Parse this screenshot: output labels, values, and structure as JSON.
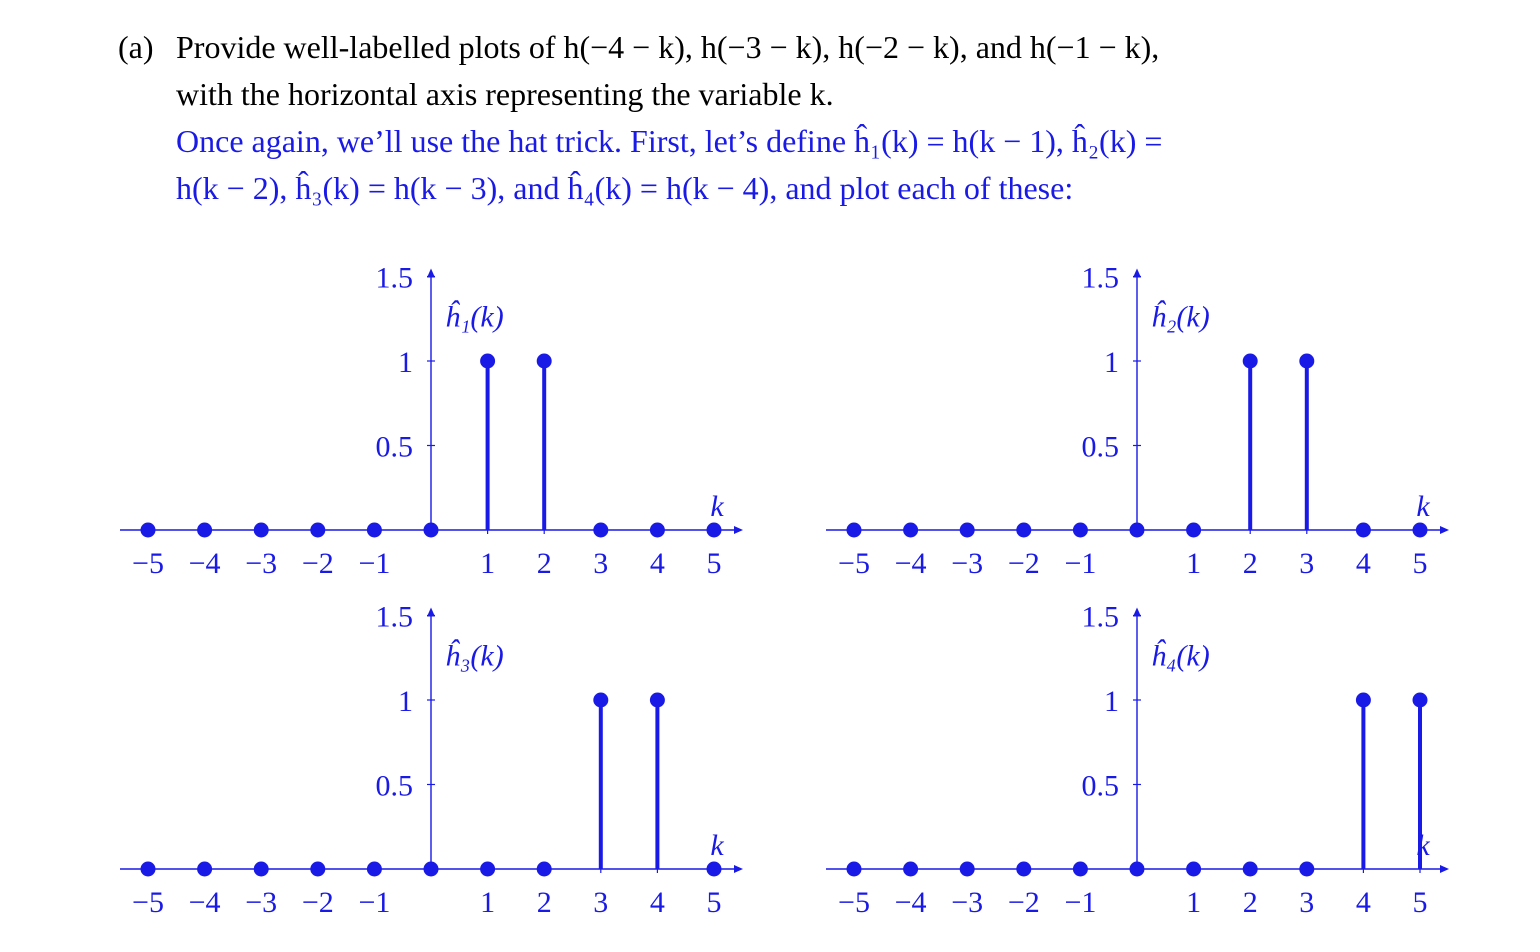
{
  "problem": {
    "label": "(a)",
    "question_lines": [
      "Provide well-labelled plots of h(−4 − k), h(−3 − k), h(−2 − k), and h(−1 − k),",
      "with the horizontal axis representing the variable k."
    ],
    "answer_lines": [
      "Once again, we’ll use the hat trick. First, let’s define ĥ₁(k) = h(k − 1), ĥ₂(k) =",
      "h(k − 2), ĥ₃(k) = h(k − 3), and ĥ₄(k) = h(k − 4), and plot each of these:"
    ]
  },
  "colors": {
    "plot": "#1a1ae6",
    "text": "#000000"
  },
  "chart_data": [
    {
      "type": "stem",
      "ylabel": "ĥ₁(k)",
      "xlabel": "k",
      "xlim": [
        -5,
        5
      ],
      "ylim": [
        0,
        1.5
      ],
      "x_tick_labels": [
        "−5",
        "−4",
        "−3",
        "−2",
        "−1",
        "1",
        "2",
        "3",
        "4",
        "5"
      ],
      "y_tick_labels": [
        "0.5",
        "1",
        "1.5"
      ],
      "x": [
        -5,
        -4,
        -3,
        -2,
        -1,
        0,
        1,
        2,
        3,
        4,
        5
      ],
      "y": [
        0,
        0,
        0,
        0,
        0,
        0,
        1,
        1,
        0,
        0,
        0
      ]
    },
    {
      "type": "stem",
      "ylabel": "ĥ₂(k)",
      "xlabel": "k",
      "xlim": [
        -5,
        5
      ],
      "ylim": [
        0,
        1.5
      ],
      "x_tick_labels": [
        "−5",
        "−4",
        "−3",
        "−2",
        "−1",
        "1",
        "2",
        "3",
        "4",
        "5"
      ],
      "y_tick_labels": [
        "0.5",
        "1",
        "1.5"
      ],
      "x": [
        -5,
        -4,
        -3,
        -2,
        -1,
        0,
        1,
        2,
        3,
        4,
        5
      ],
      "y": [
        0,
        0,
        0,
        0,
        0,
        0,
        0,
        1,
        1,
        0,
        0
      ]
    },
    {
      "type": "stem",
      "ylabel": "ĥ₃(k)",
      "xlabel": "k",
      "xlim": [
        -5,
        5
      ],
      "ylim": [
        0,
        1.5
      ],
      "x_tick_labels": [
        "−5",
        "−4",
        "−3",
        "−2",
        "−1",
        "1",
        "2",
        "3",
        "4",
        "5"
      ],
      "y_tick_labels": [
        "0.5",
        "1",
        "1.5"
      ],
      "x": [
        -5,
        -4,
        -3,
        -2,
        -1,
        0,
        1,
        2,
        3,
        4,
        5
      ],
      "y": [
        0,
        0,
        0,
        0,
        0,
        0,
        0,
        0,
        1,
        1,
        0
      ]
    },
    {
      "type": "stem",
      "ylabel": "ĥ₄(k)",
      "xlabel": "k",
      "xlim": [
        -5,
        5
      ],
      "ylim": [
        0,
        1.5
      ],
      "x_tick_labels": [
        "−5",
        "−4",
        "−3",
        "−2",
        "−1",
        "1",
        "2",
        "3",
        "4",
        "5"
      ],
      "y_tick_labels": [
        "0.5",
        "1",
        "1.5"
      ],
      "x": [
        -5,
        -4,
        -3,
        -2,
        -1,
        0,
        1,
        2,
        3,
        4,
        5
      ],
      "y": [
        0,
        0,
        0,
        0,
        0,
        0,
        0,
        0,
        0,
        1,
        1
      ]
    }
  ]
}
